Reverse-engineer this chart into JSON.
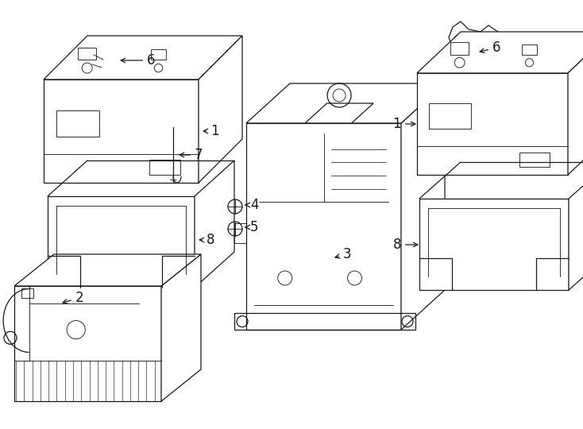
{
  "background_color": "#ffffff",
  "line_color": "#1a1a1a",
  "lw": 0.9,
  "font_size": 12,
  "fig_w": 7.34,
  "fig_h": 5.4,
  "dpi": 100
}
